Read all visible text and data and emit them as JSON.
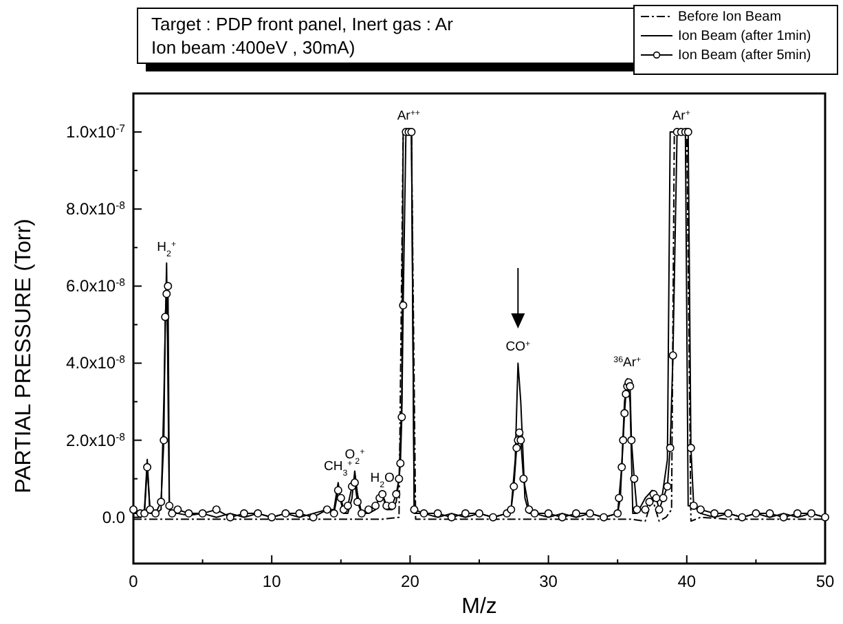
{
  "chart_data": {
    "type": "line",
    "title": "Target : PDP front panel, Inert gas : Ar",
    "subtitle": "Ion beam :400eV , 30mA)",
    "xlabel": "M/z",
    "ylabel": "PARTIAL PRESSURE (Torr)",
    "xlim": [
      0,
      50
    ],
    "xticks": [
      0,
      10,
      20,
      30,
      40,
      50
    ],
    "ylim": [
      -1.2e-08,
      1.1e-07
    ],
    "yticks": [
      {
        "value": 0,
        "label": "0.0"
      },
      {
        "value": 2e-08,
        "label": "2.0x10$^{-8}$"
      },
      {
        "value": 4e-08,
        "label": "4.0x10$^{-8}$"
      },
      {
        "value": 6e-08,
        "label": "6.0x10$^{-8}$"
      },
      {
        "value": 8e-08,
        "label": "8.0x10$^{-8}$"
      },
      {
        "value": 1e-07,
        "label": "1.0x10$^{-7}$"
      }
    ],
    "grid": false,
    "legend": "top right",
    "series": [
      {
        "name": "Before Ion Beam",
        "color": "#000000",
        "line_style": "dashed",
        "marker": "none",
        "x": [
          0,
          2,
          4,
          6,
          8,
          10,
          12,
          14,
          16,
          18,
          19.2,
          19.5,
          20.1,
          20.4,
          22,
          24,
          26,
          28,
          30,
          32,
          34,
          36,
          37,
          37.5,
          38,
          38.5,
          38.9,
          39.1,
          40.0,
          40.3,
          41,
          43,
          45,
          47,
          50
        ],
        "values": [
          -5e-10,
          -5e-10,
          -5e-10,
          -5e-10,
          -5e-10,
          -5e-10,
          -5e-10,
          -5e-10,
          -5e-10,
          -5e-10,
          0,
          1e-07,
          1e-07,
          -5e-10,
          -5e-10,
          -5e-10,
          -5e-10,
          -5e-10,
          -5e-10,
          -5e-10,
          -5e-10,
          -5e-10,
          -1e-09,
          5e-09,
          -1e-09,
          0,
          2e-09,
          1e-07,
          1e-07,
          -1e-09,
          0,
          -5e-10,
          -5e-10,
          -5e-10,
          -5e-10
        ]
      },
      {
        "name": "Ion Beam (after 1min)",
        "color": "#000000",
        "line_style": "solid",
        "marker": "none",
        "x": [
          0,
          0.5,
          0.8,
          1.0,
          1.2,
          1.6,
          2.0,
          2.2,
          2.4,
          2.6,
          2.8,
          3.2,
          4,
          5,
          6,
          7,
          8,
          9,
          10,
          11,
          12,
          13,
          14,
          14.5,
          14.8,
          15.0,
          15.2,
          15.5,
          15.8,
          16.0,
          16.2,
          16.5,
          17,
          17.5,
          17.8,
          18.0,
          18.3,
          18.7,
          19.0,
          19.2,
          19.4,
          19.5,
          20.1,
          20.3,
          21,
          22,
          23,
          24,
          25,
          26,
          27,
          27.3,
          27.6,
          27.8,
          28.0,
          28.3,
          28.6,
          29,
          30,
          31,
          32,
          33,
          34,
          35,
          35.2,
          35.5,
          35.7,
          35.9,
          36.1,
          36.4,
          37,
          37.5,
          37.8,
          38.2,
          38.6,
          38.8,
          39.9,
          40.1,
          40.5,
          41,
          42,
          43,
          44,
          45,
          46,
          47,
          48,
          49,
          50
        ],
        "values": [
          1e-09,
          1e-09,
          2e-09,
          1.5e-08,
          1e-09,
          1e-09,
          2e-09,
          3e-08,
          6.6e-08,
          2e-09,
          1e-09,
          1e-09,
          5e-10,
          1e-09,
          0,
          1e-09,
          0,
          1e-09,
          0,
          1e-09,
          0,
          1e-09,
          2e-09,
          2e-09,
          9e-09,
          4e-09,
          1e-09,
          1e-09,
          5e-09,
          1.2e-08,
          6e-09,
          1e-09,
          1e-09,
          2e-09,
          6e-09,
          6e-09,
          2e-09,
          2e-09,
          4e-09,
          1e-08,
          3e-08,
          1e-07,
          1e-07,
          1e-09,
          1e-09,
          0,
          1e-09,
          0,
          1e-09,
          0,
          1e-09,
          2e-09,
          1.5e-08,
          4e-08,
          3e-08,
          5e-09,
          1e-09,
          1e-09,
          0,
          1e-09,
          0,
          1e-09,
          0,
          1e-09,
          5e-09,
          3e-08,
          3.6e-08,
          3e-08,
          1e-09,
          1e-09,
          5e-09,
          7e-09,
          5e-09,
          5e-09,
          1.5e-08,
          1e-07,
          1e-07,
          3e-09,
          3e-09,
          1e-09,
          0,
          1e-09,
          0,
          1e-09,
          0,
          1e-09,
          0,
          1e-09,
          0
        ]
      },
      {
        "name": "Ion Beam (after 5min)",
        "color": "#000000",
        "line_style": "solid",
        "marker": "circle",
        "x": [
          0,
          0.5,
          0.8,
          1.0,
          1.2,
          1.6,
          2.0,
          2.2,
          2.3,
          2.4,
          2.5,
          2.6,
          2.8,
          3.2,
          4,
          5,
          6,
          7,
          8,
          9,
          10,
          11,
          12,
          13,
          14,
          14.5,
          14.8,
          15.0,
          15.2,
          15.5,
          15.8,
          16.0,
          16.2,
          16.5,
          17,
          17.5,
          17.8,
          18.0,
          18.3,
          18.7,
          19.0,
          19.2,
          19.3,
          19.4,
          19.5,
          19.7,
          19.9,
          20.1,
          20.3,
          21,
          22,
          23,
          24,
          25,
          26,
          27,
          27.3,
          27.5,
          27.7,
          27.8,
          27.9,
          28.0,
          28.2,
          28.6,
          29,
          30,
          31,
          32,
          33,
          34,
          35,
          35.1,
          35.3,
          35.4,
          35.5,
          35.6,
          35.7,
          35.8,
          35.9,
          36.0,
          36.2,
          36.4,
          37,
          37.3,
          37.6,
          37.8,
          38.0,
          38.3,
          38.6,
          38.8,
          39.0,
          39.3,
          39.6,
          39.9,
          40.1,
          40.3,
          40.5,
          41,
          42,
          43,
          44,
          45,
          46,
          47,
          48,
          49,
          50
        ],
        "values": [
          2e-09,
          1e-09,
          1e-09,
          1.3e-08,
          2e-09,
          1e-09,
          4e-09,
          2e-08,
          5.2e-08,
          5.8e-08,
          6e-08,
          3e-09,
          1e-09,
          2e-09,
          1e-09,
          1e-09,
          2e-09,
          0,
          1e-09,
          1e-09,
          0,
          1e-09,
          1e-09,
          0,
          2e-09,
          1e-09,
          7e-09,
          5e-09,
          2e-09,
          3e-09,
          8e-09,
          9e-09,
          4e-09,
          1e-09,
          2e-09,
          3e-09,
          5e-09,
          6e-09,
          3e-09,
          3e-09,
          6e-09,
          1e-08,
          1.4e-08,
          2.6e-08,
          5.5e-08,
          1e-07,
          1e-07,
          1e-07,
          2e-09,
          1e-09,
          1e-09,
          0,
          1e-09,
          1e-09,
          0,
          1e-09,
          2e-09,
          8e-09,
          1.8e-08,
          2e-08,
          2.2e-08,
          2e-08,
          1e-08,
          2e-09,
          1e-09,
          1e-09,
          0,
          1e-09,
          1e-09,
          0,
          1e-09,
          5e-09,
          1.3e-08,
          2e-08,
          2.7e-08,
          3.2e-08,
          3.4e-08,
          3.5e-08,
          3.4e-08,
          2e-08,
          1e-08,
          2e-09,
          2e-09,
          4e-09,
          6e-09,
          5e-09,
          2e-09,
          5e-09,
          8e-09,
          1.8e-08,
          4.2e-08,
          1e-07,
          1e-07,
          1e-07,
          1e-07,
          1.8e-08,
          3e-09,
          2e-09,
          1e-09,
          1e-09,
          0,
          1e-09,
          1e-09,
          0,
          1e-09,
          1e-09,
          0
        ]
      }
    ],
    "annotations": [
      {
        "text": "H$_{2}$$^{+}$",
        "x": 2.4,
        "y": 6.6e-08
      },
      {
        "text": "CH$_{3}$$^{+}$",
        "x": 14.8,
        "y": 9e-09
      },
      {
        "text": "O$_{2}$$^{+}$",
        "x": 16.0,
        "y": 1.2e-08
      },
      {
        "text": "H$_{2}$O",
        "x": 18.0,
        "y": 6e-09
      },
      {
        "text": "Ar$^{++}$",
        "x": 19.9,
        "y": 1e-07
      },
      {
        "text": "CO$^{+}$",
        "x": 27.8,
        "y": 4e-08
      },
      {
        "text": "$^{36}$Ar$^{+}$",
        "x": 35.7,
        "y": 3.6e-08
      },
      {
        "text": "Ar$^{+}$",
        "x": 39.6,
        "y": 1e-07
      }
    ]
  }
}
